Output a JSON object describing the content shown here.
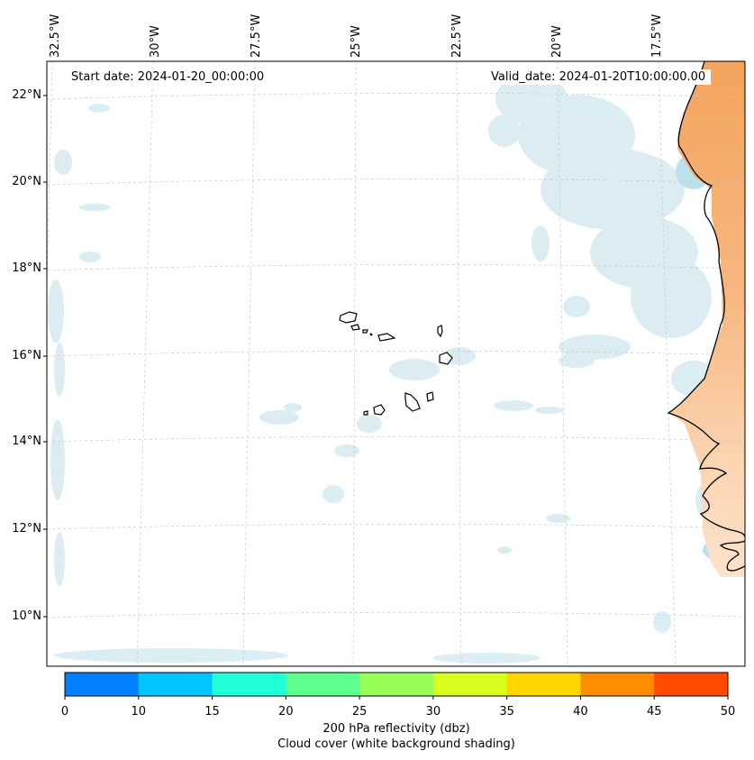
{
  "map": {
    "start_date_text": "Start date: 2024-01-20_00:00:00",
    "valid_date_text": "Valid_date: 2024-01-20T10:00:00.00",
    "lon_labels": [
      "32.5°W",
      "30°W",
      "27.5°W",
      "25°W",
      "22.5°W",
      "20°W",
      "17.5°W"
    ],
    "lat_labels": [
      "22°N",
      "20°N",
      "18°N",
      "16°N",
      "14°N",
      "12°N",
      "10°N"
    ],
    "colors": {
      "land_shading": "#f4a45e",
      "land_shading_light": "#fbd2ad",
      "cloud_shading": "#cfe8f0",
      "coastline": "#000000",
      "gridline": "#c8c8c8"
    },
    "features": [
      "coastline",
      "cape-verde-islands",
      "cloud-cover-shading",
      "reflectivity-shading"
    ]
  },
  "colorbar": {
    "ticks": [
      "0",
      "10",
      "15",
      "20",
      "25",
      "30",
      "35",
      "40",
      "45",
      "50"
    ],
    "colors": [
      "#0080ff",
      "#00c5ff",
      "#20ffd8",
      "#60ff90",
      "#98ff58",
      "#d8ff20",
      "#ffd600",
      "#ff8c00",
      "#ff4a00"
    ],
    "title_line1": "200 hPa reflectivity (dbz)",
    "title_line2": "Cloud cover (white background shading)"
  }
}
